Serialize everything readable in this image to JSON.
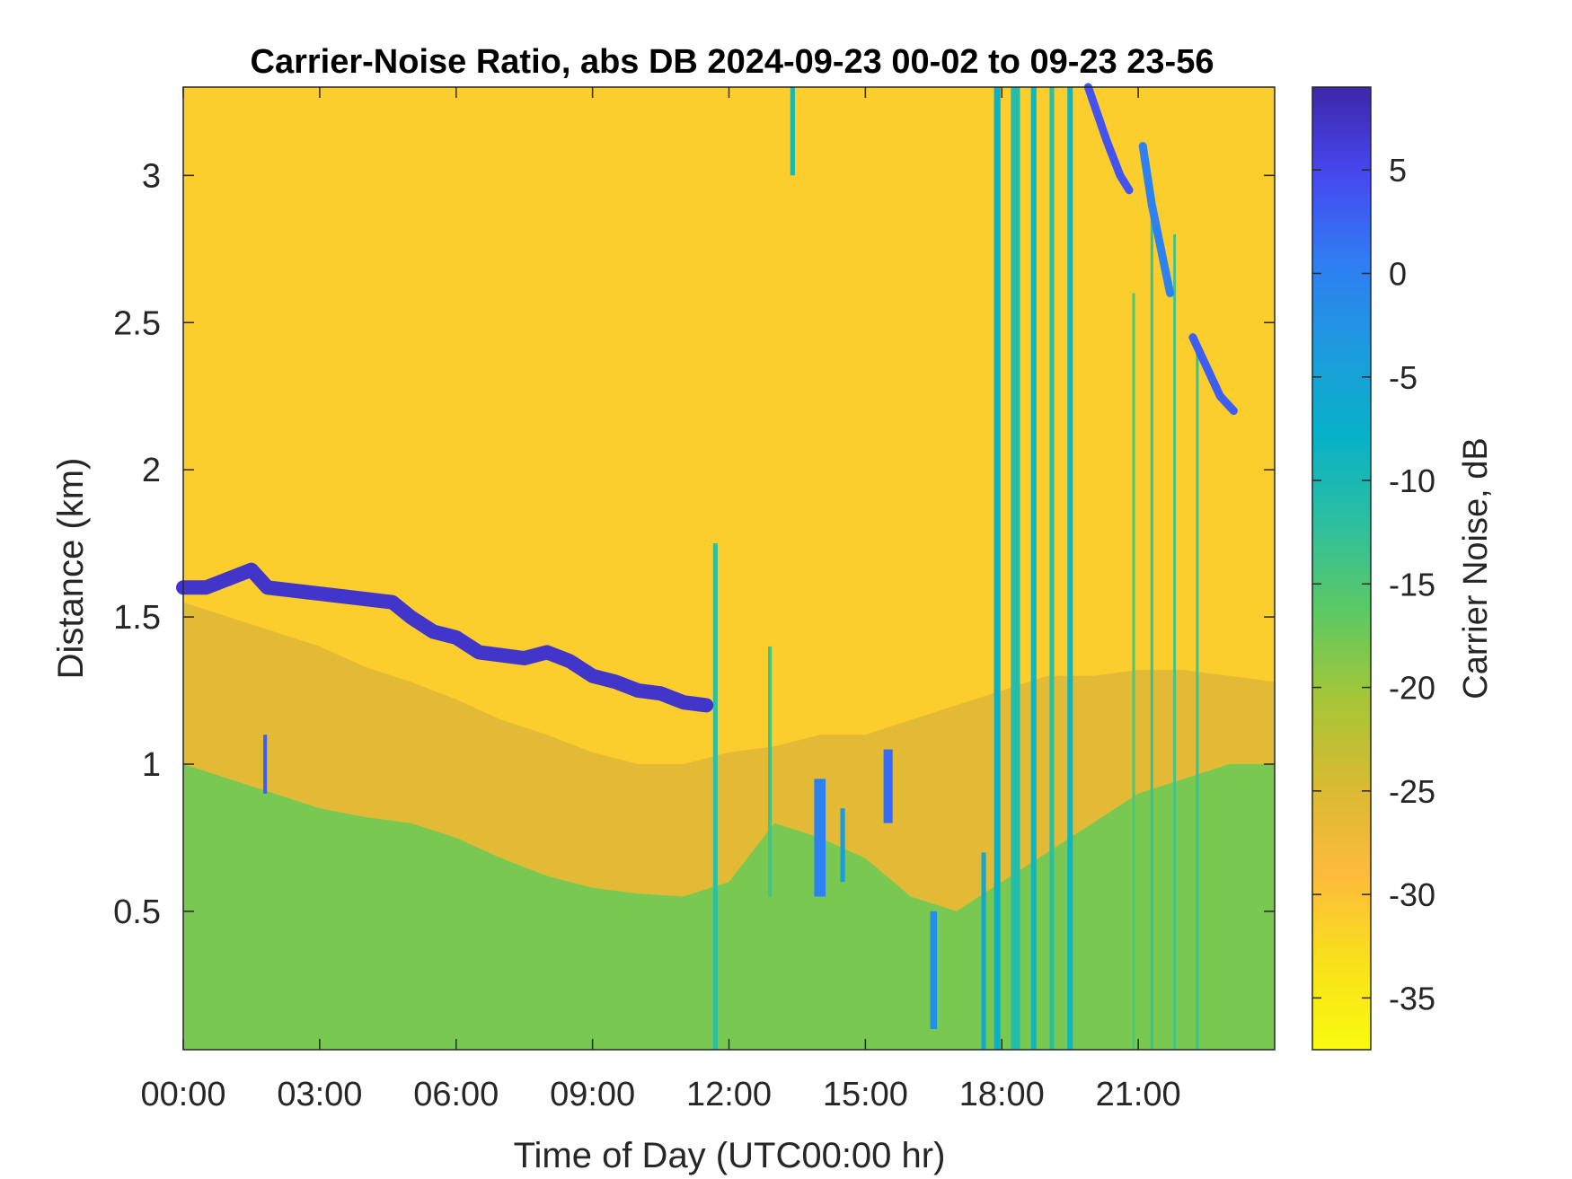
{
  "chart_data": {
    "type": "heatmap",
    "title": "Carrier-Noise Ratio, abs DB 2024-09-23 00-02 to 09-23 23-56",
    "xlabel": "Time of Day (UTC00:00 hr)",
    "ylabel": "Distance (km)",
    "colorbar_label": "Carrier Noise, dB",
    "xlim_hours": [
      0,
      24
    ],
    "ylim_km": [
      0.03,
      3.3
    ],
    "clim_db": [
      -37.5,
      9.0
    ],
    "x_ticks": [
      {
        "value": 0,
        "label": "00:00"
      },
      {
        "value": 3,
        "label": "03:00"
      },
      {
        "value": 6,
        "label": "06:00"
      },
      {
        "value": 9,
        "label": "09:00"
      },
      {
        "value": 12,
        "label": "12:00"
      },
      {
        "value": 15,
        "label": "15:00"
      },
      {
        "value": 18,
        "label": "18:00"
      },
      {
        "value": 21,
        "label": "21:00"
      }
    ],
    "y_ticks": [
      {
        "value": 0.5,
        "label": "0.5"
      },
      {
        "value": 1,
        "label": "1"
      },
      {
        "value": 1.5,
        "label": "1.5"
      },
      {
        "value": 2,
        "label": "2"
      },
      {
        "value": 2.5,
        "label": "2.5"
      },
      {
        "value": 3,
        "label": "3"
      }
    ],
    "colorbar_ticks": [
      {
        "value": 5,
        "label": "5"
      },
      {
        "value": 0,
        "label": "0"
      },
      {
        "value": -5,
        "label": "-5"
      },
      {
        "value": -10,
        "label": "-10"
      },
      {
        "value": -15,
        "label": "-15"
      },
      {
        "value": -20,
        "label": "-20"
      },
      {
        "value": -25,
        "label": "-25"
      },
      {
        "value": -30,
        "label": "-30"
      },
      {
        "value": -35,
        "label": "-35"
      }
    ],
    "colormap": "parula",
    "colormap_stops": [
      "#3e26a8",
      "#4748f0",
      "#2f7df3",
      "#1d9bde",
      "#07b2c7",
      "#2ebf9f",
      "#5dc963",
      "#a6c637",
      "#d9ba32",
      "#fdbb3c",
      "#f9e11b",
      "#f9fb0e"
    ],
    "background_db": -31,
    "grid": false,
    "layers": [
      {
        "name": "boundary layer",
        "hours": [
          0,
          24
        ],
        "top_km": [
          1.55,
          1.5,
          1.45,
          1.4,
          1.33,
          1.28,
          1.22,
          1.15,
          1.1,
          1.04,
          1.0,
          1.0,
          1.04,
          1.06,
          1.1,
          1.1,
          1.15,
          1.2,
          1.25,
          1.3,
          1.3,
          1.32,
          1.32,
          1.3,
          1.28
        ],
        "db": -26
      },
      {
        "name": "near-surface aerosol",
        "hours": [
          0,
          24
        ],
        "top_km": [
          1.0,
          0.95,
          0.9,
          0.85,
          0.82,
          0.8,
          0.75,
          0.68,
          0.62,
          0.58,
          0.56,
          0.55,
          0.6,
          0.8,
          0.75,
          0.68,
          0.55,
          0.5,
          0.6,
          0.7,
          0.8,
          0.9,
          0.95,
          1.0,
          1.0
        ],
        "db": -18
      }
    ],
    "cloud_base": {
      "hours": [
        0.0,
        0.5,
        1.0,
        1.5,
        1.85,
        4.6,
        5.0,
        5.5,
        6.0,
        6.5,
        7.0,
        7.5,
        8.0,
        8.5,
        9.0,
        9.5,
        10.0,
        10.5,
        11.0,
        11.5
      ],
      "km": [
        1.6,
        1.6,
        1.63,
        1.66,
        1.6,
        1.55,
        1.5,
        1.45,
        1.43,
        1.38,
        1.37,
        1.36,
        1.38,
        1.35,
        1.3,
        1.28,
        1.25,
        1.24,
        1.21,
        1.2
      ],
      "db": 7
    },
    "columns": [
      {
        "hour": 1.8,
        "width_h": 0.08,
        "from_km": 0.9,
        "to_km": 1.1,
        "db": 3
      },
      {
        "hour": 11.7,
        "width_h": 0.1,
        "from_km": 0.03,
        "to_km": 1.75,
        "db": -12
      },
      {
        "hour": 12.9,
        "width_h": 0.08,
        "from_km": 0.55,
        "to_km": 1.4,
        "db": -14
      },
      {
        "hour": 13.4,
        "width_h": 0.1,
        "from_km": 3.0,
        "to_km": 3.3,
        "db": -10
      },
      {
        "hour": 14.0,
        "width_h": 0.25,
        "from_km": 0.55,
        "to_km": 0.95,
        "db": 0
      },
      {
        "hour": 14.5,
        "width_h": 0.1,
        "from_km": 0.6,
        "to_km": 0.85,
        "db": -4
      },
      {
        "hour": 15.5,
        "width_h": 0.2,
        "from_km": 0.8,
        "to_km": 1.05,
        "db": 2
      },
      {
        "hour": 16.5,
        "width_h": 0.15,
        "from_km": 0.1,
        "to_km": 0.5,
        "db": -2
      },
      {
        "hour": 17.6,
        "width_h": 0.1,
        "from_km": 0.03,
        "to_km": 0.7,
        "db": -6
      },
      {
        "hour": 17.9,
        "width_h": 0.14,
        "from_km": 0.03,
        "to_km": 3.3,
        "db": -8
      },
      {
        "hour": 18.3,
        "width_h": 0.2,
        "from_km": 0.03,
        "to_km": 3.3,
        "db": -11
      },
      {
        "hour": 18.7,
        "width_h": 0.12,
        "from_km": 0.03,
        "to_km": 3.3,
        "db": -9
      },
      {
        "hour": 19.1,
        "width_h": 0.1,
        "from_km": 0.03,
        "to_km": 3.3,
        "db": -12
      },
      {
        "hour": 19.5,
        "width_h": 0.12,
        "from_km": 0.03,
        "to_km": 3.3,
        "db": -9
      },
      {
        "hour": 20.9,
        "width_h": 0.06,
        "from_km": 0.03,
        "to_km": 2.6,
        "db": -15
      },
      {
        "hour": 21.3,
        "width_h": 0.06,
        "from_km": 0.03,
        "to_km": 2.9,
        "db": -13
      },
      {
        "hour": 21.8,
        "width_h": 0.06,
        "from_km": 0.03,
        "to_km": 2.8,
        "db": -14
      },
      {
        "hour": 22.3,
        "width_h": 0.06,
        "from_km": 0.03,
        "to_km": 2.4,
        "db": -13
      }
    ],
    "streaks": [
      {
        "hours": [
          19.9,
          20.3,
          20.6,
          20.8
        ],
        "km": [
          3.3,
          3.12,
          3.0,
          2.95
        ],
        "db": 4
      },
      {
        "hours": [
          21.1,
          21.3,
          21.5,
          21.7
        ],
        "km": [
          3.1,
          2.9,
          2.75,
          2.6
        ],
        "db": 0
      },
      {
        "hours": [
          22.2,
          22.5,
          22.8,
          23.1
        ],
        "km": [
          2.45,
          2.35,
          2.25,
          2.2
        ],
        "db": 3
      }
    ]
  }
}
